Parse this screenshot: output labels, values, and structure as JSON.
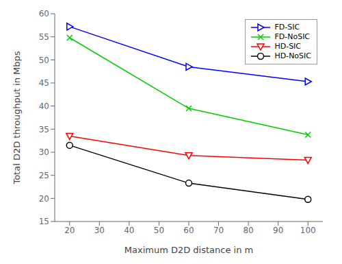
{
  "chart_data": {
    "type": "line",
    "x": [
      20,
      60,
      100
    ],
    "series": [
      {
        "name": "FD-SIC",
        "color": "#0000FF",
        "marker": "triangle-right",
        "values": [
          57.2,
          48.5,
          45.3
        ]
      },
      {
        "name": "FD-NoSIC",
        "color": "#00CC00",
        "marker": "x",
        "values": [
          54.8,
          39.5,
          33.8
        ]
      },
      {
        "name": "HD-SIC",
        "color": "#FF0000",
        "marker": "triangle-down",
        "values": [
          33.5,
          29.3,
          28.3
        ]
      },
      {
        "name": "HD-NoSIC",
        "color": "#000000",
        "marker": "circle",
        "values": [
          31.5,
          23.3,
          19.8
        ]
      }
    ],
    "xlabel": "Maximum D2D distance in m",
    "ylabel": "Total D2D throughput in Mbps",
    "xlim": [
      15,
      105
    ],
    "ylim": [
      15,
      60
    ],
    "xticks": [
      20,
      30,
      40,
      50,
      60,
      70,
      80,
      90,
      100
    ],
    "yticks": [
      15,
      20,
      25,
      30,
      35,
      40,
      45,
      50,
      55,
      60
    ],
    "grid": false,
    "legend": "upper right"
  }
}
